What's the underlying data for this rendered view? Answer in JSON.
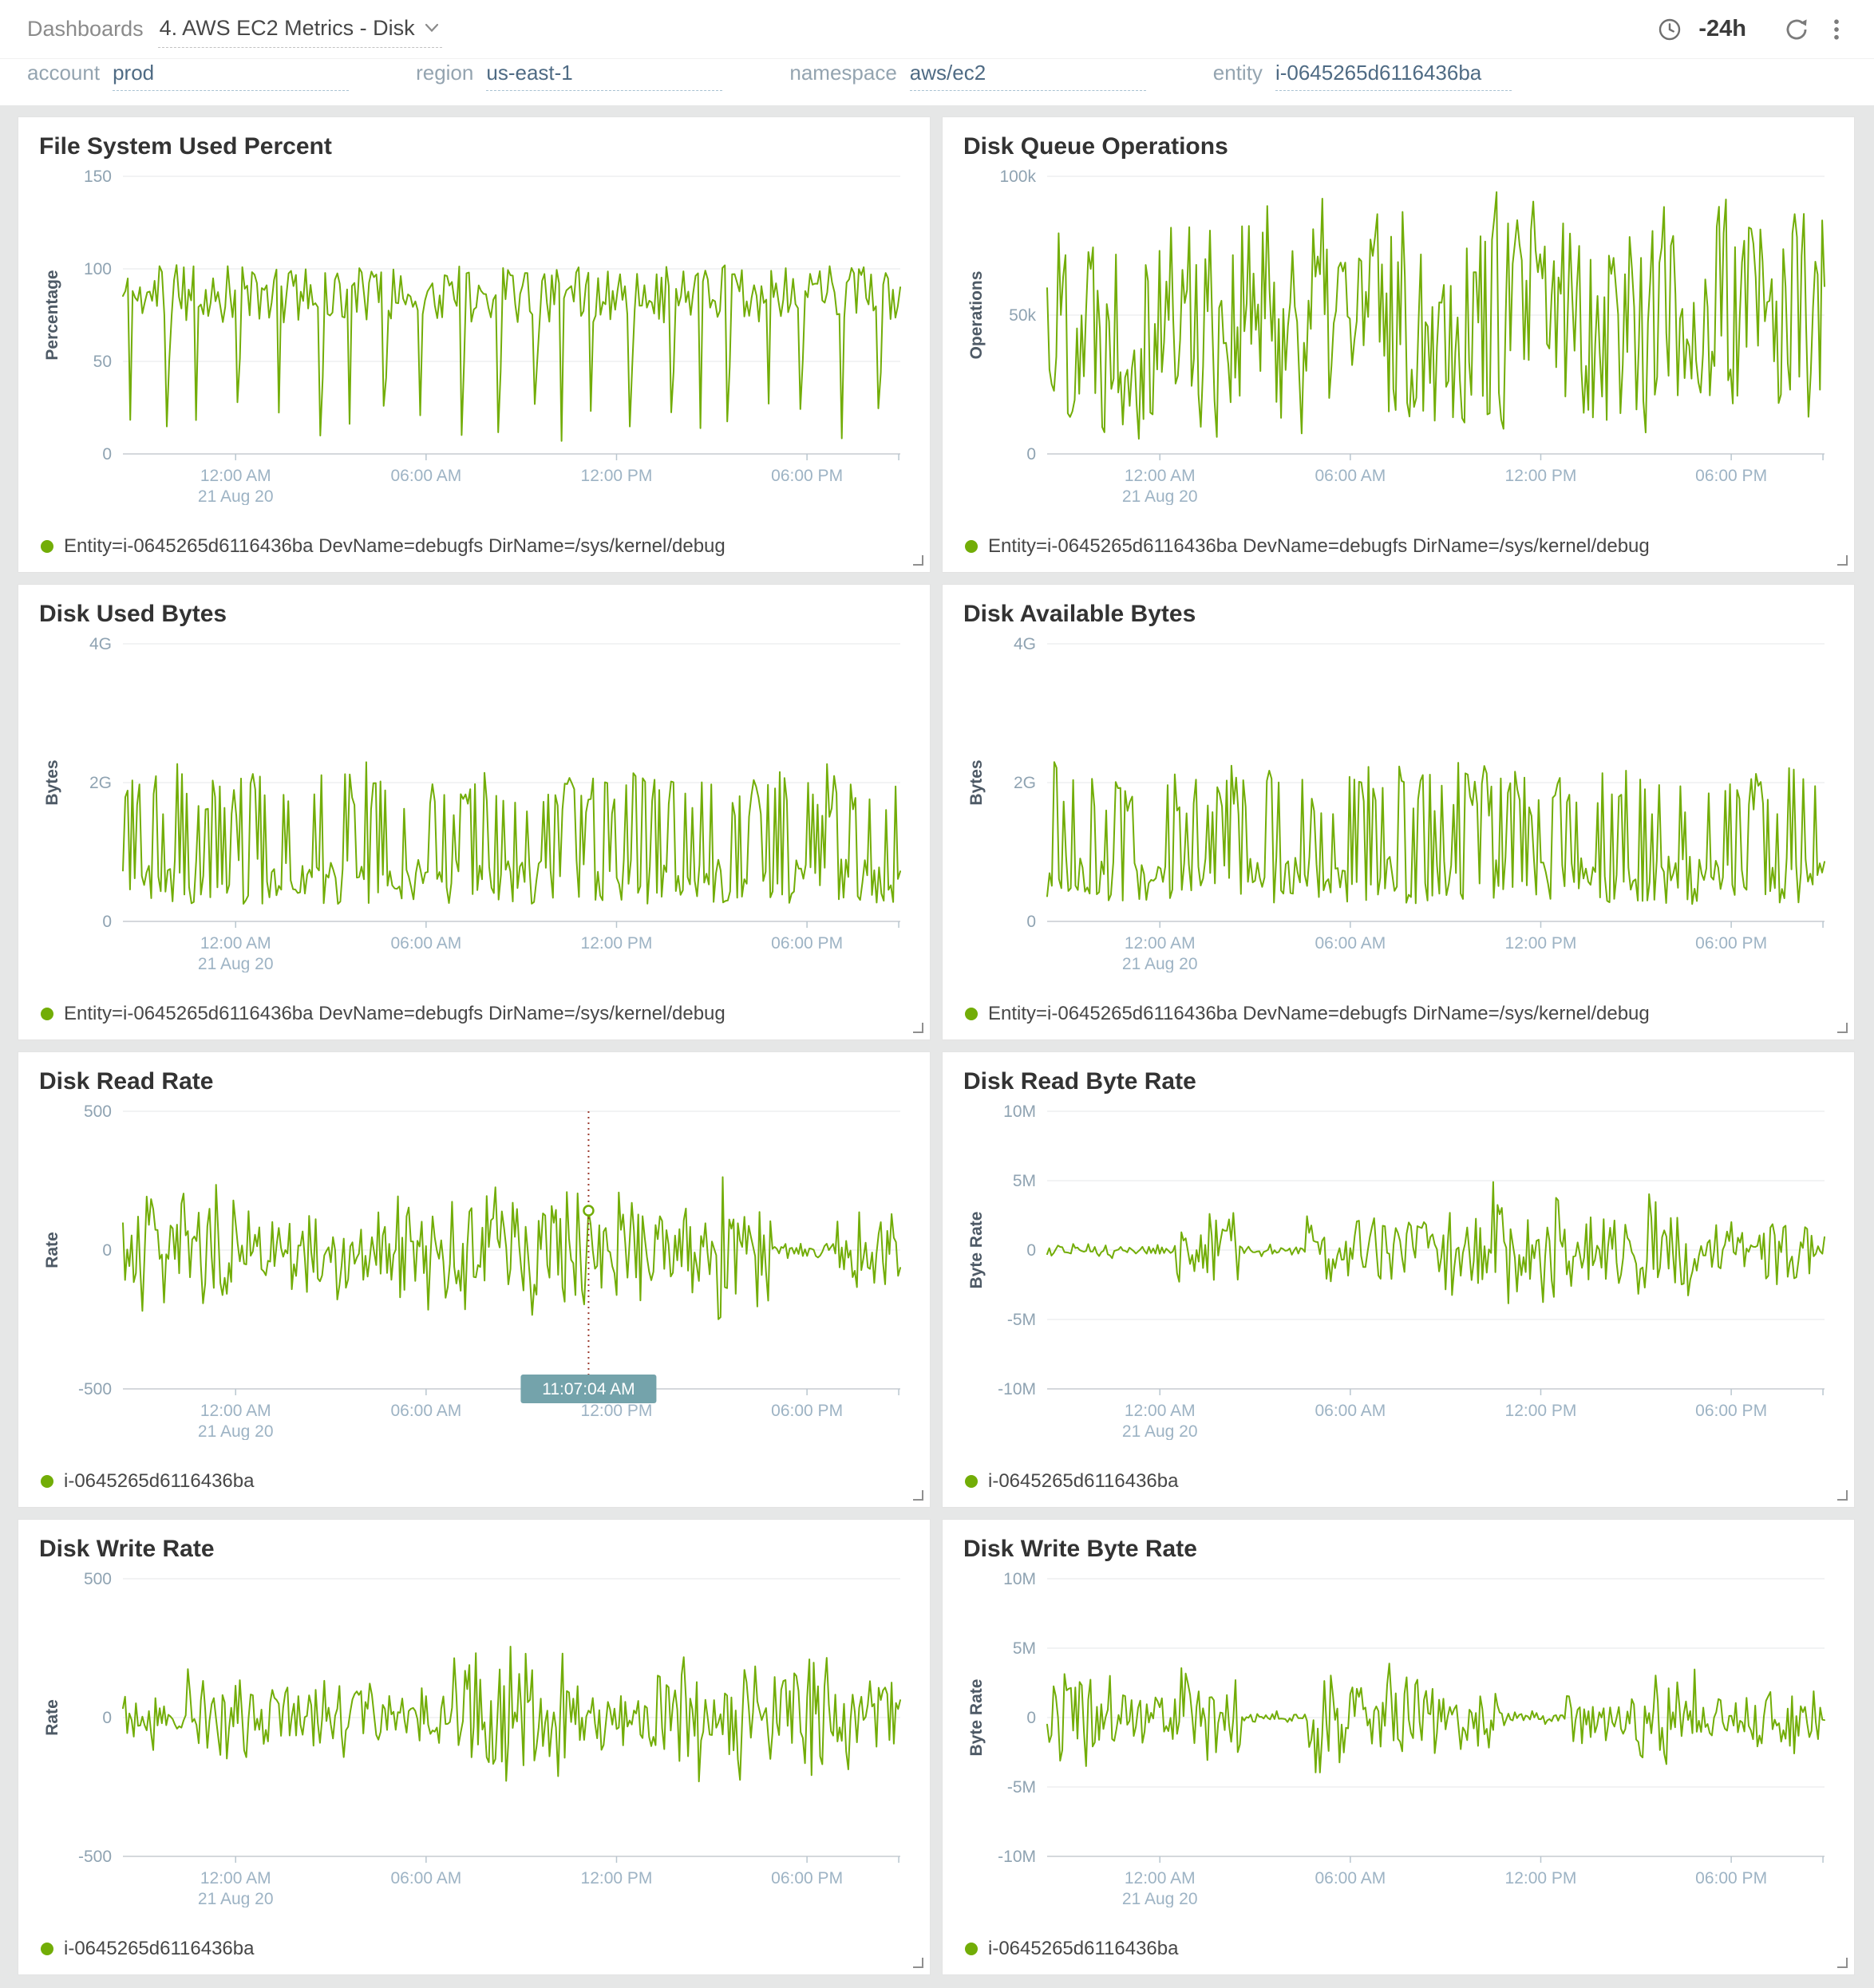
{
  "header": {
    "breadcrumb": "Dashboards",
    "dashboard_title": "4. AWS EC2 Metrics - Disk",
    "time_range": "-24h",
    "icons": {
      "chevron": "chevron-down-icon",
      "clock": "clock-history-icon",
      "refresh": "refresh-icon",
      "kebab": "kebab-menu-icon"
    }
  },
  "filters": [
    {
      "label": "account",
      "value": "prod"
    },
    {
      "label": "region",
      "value": "us-east-1"
    },
    {
      "label": "namespace",
      "value": "aws/ec2"
    },
    {
      "label": "entity",
      "value": "i-0645265d6116436ba"
    }
  ],
  "colors": {
    "series": "#72ad07",
    "crosshair": "#9c3b2e",
    "tooltip_bg": "#74a3ab",
    "tooltip_text": "#ffffff",
    "grid": "#e4e7e9",
    "axis": "#c7ccd1",
    "ytick_text": "#8fa3b2",
    "xtick_text": "#9db3c4",
    "ylabel_text": "#4e5a66"
  },
  "x_axis": {
    "ticks": [
      {
        "pos": 0.145,
        "lines": [
          "12:00 AM",
          "21 Aug 20"
        ]
      },
      {
        "pos": 0.39,
        "lines": [
          "06:00 AM"
        ]
      },
      {
        "pos": 0.635,
        "lines": [
          "12:00 PM"
        ]
      },
      {
        "pos": 0.88,
        "lines": [
          "06:00 PM"
        ]
      },
      {
        "pos": 0.998,
        "lines": []
      }
    ]
  },
  "chart_data": [
    {
      "type": "line",
      "title": "File System Used Percent",
      "ylabel": "Percentage",
      "ymin": 0,
      "ymax": 150,
      "yticks": [
        {
          "v": 0,
          "label": "0"
        },
        {
          "v": 50,
          "label": "50"
        },
        {
          "v": 100,
          "label": "100"
        },
        {
          "v": 150,
          "label": "150"
        }
      ],
      "legend": "Entity=i-0645265d6116436ba DevName=debugfs DirName=/sys/kernel/debug",
      "series_desc": "Oscillates between ~60-100% with ~20 periodic sharp dips down to ~5-25%",
      "pattern": {
        "kind": "high_with_dips",
        "points": 320,
        "base": 85,
        "noise": 14,
        "dip_low": 6,
        "dip_high": 28,
        "dip_every": 14
      },
      "seed": 11
    },
    {
      "type": "line",
      "title": "Disk Queue Operations",
      "ylabel": "Operations",
      "ymin": 0,
      "ymax": 100000,
      "yticks": [
        {
          "v": 0,
          "label": "0"
        },
        {
          "v": 50000,
          "label": "50k"
        },
        {
          "v": 100000,
          "label": "100k"
        }
      ],
      "legend": "Entity=i-0645265d6116436ba DevName=debugfs DirName=/sys/kernel/debug",
      "series_desc": "Highly noisy signal spanning ~3k to ~97k operations across the full window",
      "pattern": {
        "kind": "rough",
        "points": 340,
        "min": 3000,
        "max": 97000,
        "chase": 0.85
      },
      "seed": 22
    },
    {
      "type": "line",
      "title": "Disk Used Bytes",
      "ylabel": "Bytes",
      "ymin": 0,
      "ymax": 4000000000,
      "yticks": [
        {
          "v": 0,
          "label": "0"
        },
        {
          "v": 2000000000,
          "label": "2G"
        },
        {
          "v": 4000000000,
          "label": "4G"
        }
      ],
      "legend": "Entity=i-0645265d6116436ba DevName=debugfs DirName=/sys/kernel/debug",
      "series_desc": "Baseline ~0.25-0.9G with frequent spikes up to ~1.5-2.3G",
      "pattern": {
        "kind": "spikes_low",
        "points": 330,
        "base_min": 250000000,
        "base_max": 900000000,
        "spike_min": 1500000000,
        "spike_max": 2150000000,
        "spike_prob": 0.38
      },
      "seed": 33
    },
    {
      "type": "line",
      "title": "Disk Available Bytes",
      "ylabel": "Bytes",
      "ymin": 0,
      "ymax": 4000000000,
      "yticks": [
        {
          "v": 0,
          "label": "0"
        },
        {
          "v": 2000000000,
          "label": "2G"
        },
        {
          "v": 4000000000,
          "label": "4G"
        }
      ],
      "legend": "Entity=i-0645265d6116436ba DevName=debugfs DirName=/sys/kernel/debug",
      "series_desc": "Baseline ~0.25-0.95G with frequent spikes up to ~1.5-2.3G",
      "pattern": {
        "kind": "spikes_low",
        "points": 330,
        "base_min": 250000000,
        "base_max": 950000000,
        "spike_min": 1500000000,
        "spike_max": 2150000000,
        "spike_prob": 0.36
      },
      "seed": 44
    },
    {
      "type": "line",
      "title": "Disk Read Rate",
      "ylabel": "Rate",
      "ymin": -500,
      "ymax": 500,
      "yticks": [
        {
          "v": -500,
          "label": "-500"
        },
        {
          "v": 0,
          "label": "0"
        },
        {
          "v": 500,
          "label": "500"
        }
      ],
      "legend": "i-0645265d6116436ba",
      "series_desc": "Zero-centered noise, typically within ±250, extremes near ±380",
      "pattern": {
        "kind": "centered",
        "points": 360,
        "amp": 270,
        "clamp": 395
      },
      "seed": 55,
      "crosshair": {
        "pos": 0.599,
        "label": "11:07:04 AM"
      }
    },
    {
      "type": "line",
      "title": "Disk Read Byte Rate",
      "ylabel": "Byte Rate",
      "ymin": -10000000,
      "ymax": 10000000,
      "yticks": [
        {
          "v": -10000000,
          "label": "-10M"
        },
        {
          "v": -5000000,
          "label": "-5M"
        },
        {
          "v": 0,
          "label": "0"
        },
        {
          "v": 5000000,
          "label": "5M"
        },
        {
          "v": 10000000,
          "label": "10M"
        }
      ],
      "legend": "i-0645265d6116436ba",
      "series_desc": "Zero-centered noise, typically within ±5M, extremes near ±6M",
      "pattern": {
        "kind": "centered",
        "points": 360,
        "amp": 4600000,
        "clamp": 6400000
      },
      "seed": 66
    },
    {
      "type": "line",
      "title": "Disk Write Rate",
      "ylabel": "Rate",
      "ymin": -500,
      "ymax": 500,
      "yticks": [
        {
          "v": -500,
          "label": "-500"
        },
        {
          "v": 0,
          "label": "0"
        },
        {
          "v": 500,
          "label": "500"
        }
      ],
      "legend": "i-0645265d6116436ba",
      "series_desc": "Zero-centered noise, typically within ±250, extremes near ±350",
      "pattern": {
        "kind": "centered",
        "points": 360,
        "amp": 260,
        "clamp": 380
      },
      "seed": 77
    },
    {
      "type": "line",
      "title": "Disk Write Byte Rate",
      "ylabel": "Byte Rate",
      "ymin": -10000000,
      "ymax": 10000000,
      "yticks": [
        {
          "v": -10000000,
          "label": "-10M"
        },
        {
          "v": -5000000,
          "label": "-5M"
        },
        {
          "v": 0,
          "label": "0"
        },
        {
          "v": 5000000,
          "label": "5M"
        },
        {
          "v": 10000000,
          "label": "10M"
        }
      ],
      "legend": "i-0645265d6116436ba",
      "series_desc": "Zero-centered noise with quiet flat stretches, typically within ±5M",
      "pattern": {
        "kind": "centered",
        "points": 360,
        "amp": 4400000,
        "clamp": 6200000
      },
      "seed": 88
    }
  ]
}
